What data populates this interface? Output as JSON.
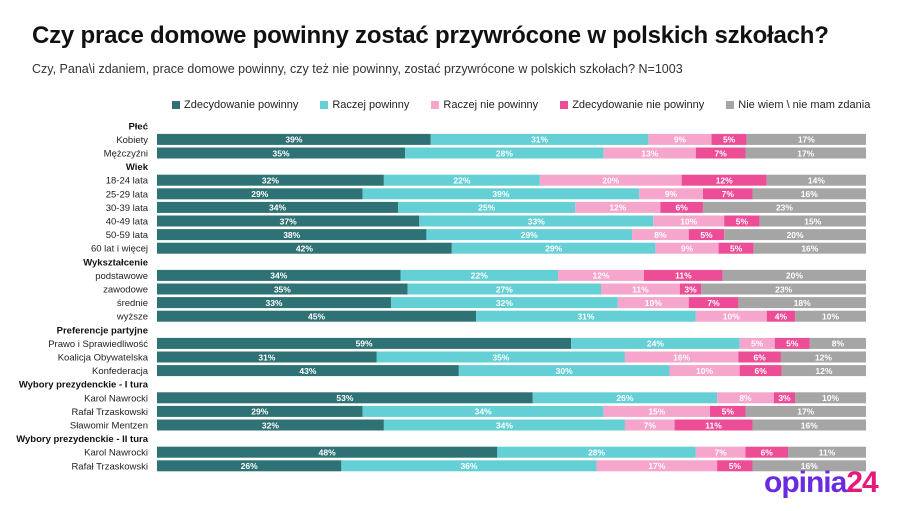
{
  "title": "Czy prace domowe powinny zostać przywrócone w polskich szkołach?",
  "subtitle": "Czy, Pana\\i zdaniem, prace domowe powinny, czy też nie powinny, zostać przywrócone w polskich szkołach? N=1003",
  "logo": {
    "part1": "opinia",
    "part2": "24"
  },
  "colors": {
    "text_dark": "#111111",
    "logo_purple": "#6a2ae0",
    "logo_pink": "#e6197a"
  },
  "chart_data": {
    "type": "bar",
    "orientation": "horizontal",
    "stacked": true,
    "title": "Czy prace domowe powinny zostać przywrócone w polskich szkołach?",
    "series": [
      {
        "name": "Zdecydowanie powinny",
        "color": "#2e7275"
      },
      {
        "name": "Raczej powinny",
        "color": "#64d0d6"
      },
      {
        "name": "Raczej nie powinny",
        "color": "#f6a6cc"
      },
      {
        "name": "Zdecydowanie nie powinny",
        "color": "#ec4d96"
      },
      {
        "name": "Nie wiem \\ nie mam zdania",
        "color": "#a5a5a5"
      }
    ],
    "rows": [
      {
        "kind": "header",
        "label": "Płeć"
      },
      {
        "kind": "bar",
        "label": "Kobiety",
        "values": [
          39,
          31,
          9,
          5,
          17
        ]
      },
      {
        "kind": "bar",
        "label": "Mężczyźni",
        "values": [
          35,
          28,
          13,
          7,
          17
        ]
      },
      {
        "kind": "header",
        "label": "Wiek"
      },
      {
        "kind": "bar",
        "label": "18-24 lata",
        "values": [
          32,
          22,
          20,
          12,
          14
        ]
      },
      {
        "kind": "bar",
        "label": "25-29 lata",
        "values": [
          29,
          39,
          9,
          7,
          16
        ]
      },
      {
        "kind": "bar",
        "label": "30-39 lata",
        "values": [
          34,
          25,
          12,
          6,
          23
        ]
      },
      {
        "kind": "bar",
        "label": "40-49 lata",
        "values": [
          37,
          33,
          10,
          5,
          15
        ]
      },
      {
        "kind": "bar",
        "label": "50-59 lata",
        "values": [
          38,
          29,
          8,
          5,
          20
        ]
      },
      {
        "kind": "bar",
        "label": "60 lat i więcej",
        "values": [
          42,
          29,
          9,
          5,
          16
        ]
      },
      {
        "kind": "header",
        "label": "Wykształcenie"
      },
      {
        "kind": "bar",
        "label": "podstawowe",
        "values": [
          34,
          22,
          12,
          11,
          20
        ]
      },
      {
        "kind": "bar",
        "label": "zawodowe",
        "values": [
          35,
          27,
          11,
          3,
          23
        ]
      },
      {
        "kind": "bar",
        "label": "średnie",
        "values": [
          33,
          32,
          10,
          7,
          18
        ]
      },
      {
        "kind": "bar",
        "label": "wyższe",
        "values": [
          45,
          31,
          10,
          4,
          10
        ]
      },
      {
        "kind": "header",
        "label": "Preferencje partyjne"
      },
      {
        "kind": "bar",
        "label": "Prawo i Sprawiedliwość",
        "values": [
          59,
          24,
          5,
          5,
          8
        ]
      },
      {
        "kind": "bar",
        "label": "Koalicja Obywatelska",
        "values": [
          31,
          35,
          16,
          6,
          12
        ]
      },
      {
        "kind": "bar",
        "label": "Konfederacja",
        "values": [
          43,
          30,
          10,
          6,
          12
        ]
      },
      {
        "kind": "header",
        "label": "Wybory prezydenckie - I tura"
      },
      {
        "kind": "bar",
        "label": "Karol Nawrocki",
        "values": [
          53,
          26,
          8,
          3,
          10
        ]
      },
      {
        "kind": "bar",
        "label": "Rafał Trzaskowski",
        "values": [
          29,
          34,
          15,
          5,
          17
        ]
      },
      {
        "kind": "bar",
        "label": "Sławomir Mentzen",
        "values": [
          32,
          34,
          7,
          11,
          16
        ]
      },
      {
        "kind": "header",
        "label": "Wybory prezydenckie - II tura"
      },
      {
        "kind": "bar",
        "label": "Karol Nawrocki",
        "values": [
          48,
          28,
          7,
          6,
          11
        ]
      },
      {
        "kind": "bar",
        "label": "Rafał Trzaskowski",
        "values": [
          26,
          36,
          17,
          5,
          16
        ]
      }
    ]
  }
}
